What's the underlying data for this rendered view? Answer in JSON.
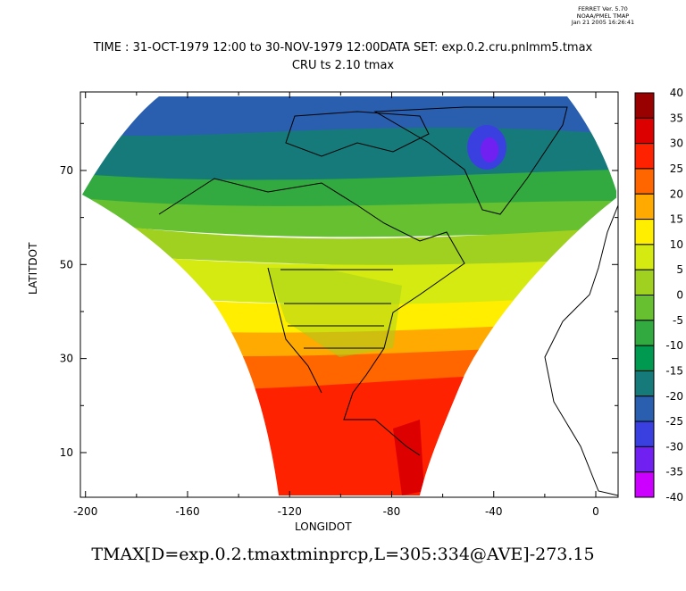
{
  "stamp": {
    "line1": "FERRET Ver. 5.70",
    "line2": "NOAA/PMEL TMAP",
    "line3": "Jan 21 2005 16:26:41"
  },
  "title": {
    "line1": "TIME : 31-OCT-1979 12:00 to 30-NOV-1979 12:00DATA SET: exp.0.2.cru.pnlmm5.tmax",
    "line2": "CRU ts 2.10 tmax"
  },
  "axes": {
    "xlabel": "LONGIDOT",
    "ylabel": "LATITDOT",
    "xticks": [
      "-200",
      "-160",
      "-120",
      "-80",
      "-40",
      "0"
    ],
    "xtick_values": [
      -200,
      -160,
      -120,
      -80,
      -40,
      0
    ],
    "yticks": [
      "10",
      "30",
      "50",
      "70"
    ],
    "ytick_values": [
      10,
      30,
      50,
      70
    ],
    "xlim": [
      -202,
      8.75
    ],
    "ylim": [
      0.5,
      86.7
    ]
  },
  "colorbar": {
    "labels": [
      "40",
      "35",
      "30",
      "25",
      "20",
      "15",
      "10",
      "5",
      "0",
      "-5",
      "-10",
      "-15",
      "-20",
      "-25",
      "-30",
      "-35",
      "-40"
    ],
    "colors": [
      "#990000",
      "#dd0000",
      "#ff2200",
      "#ff6600",
      "#ffaa00",
      "#ffee00",
      "#d4ea10",
      "#a0d020",
      "#66c030",
      "#33aa40",
      "#009950",
      "#177a7a",
      "#2a5fb0",
      "#3a40e0",
      "#7020f0",
      "#cc00ff"
    ]
  },
  "bottom_label": "TMAX[D=exp.0.2.tmaxtminprcp,L=305:334@AVE]-273.15"
}
